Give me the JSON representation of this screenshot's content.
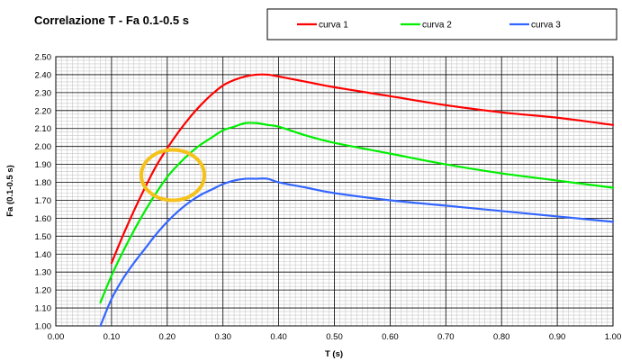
{
  "chart_data": {
    "type": "line",
    "title": "Correlazione T - Fa 0.1-0.5 s",
    "xlabel": "T (s)",
    "ylabel": "Fa (0.1-0.5 s)",
    "xlim": [
      0,
      1
    ],
    "ylim": [
      1.0,
      2.5
    ],
    "x_ticks": [
      "0.00",
      "0.10",
      "0.20",
      "0.30",
      "0.40",
      "0.50",
      "0.60",
      "0.70",
      "0.80",
      "0.90",
      "1.00"
    ],
    "y_ticks": [
      "1.00",
      "1.10",
      "1.20",
      "1.30",
      "1.40",
      "1.50",
      "1.60",
      "1.70",
      "1.80",
      "1.90",
      "2.00",
      "2.10",
      "2.20",
      "2.30",
      "2.40",
      "2.50"
    ],
    "grid": true,
    "legend_position": "top-right",
    "series": [
      {
        "name": "curva 1",
        "color": "#ff0000",
        "x": [
          0.1,
          0.12,
          0.14,
          0.16,
          0.18,
          0.2,
          0.22,
          0.24,
          0.26,
          0.28,
          0.3,
          0.32,
          0.34,
          0.36,
          0.38,
          0.4,
          0.45,
          0.5,
          0.6,
          0.7,
          0.8,
          0.9,
          1.0
        ],
        "y": [
          1.35,
          1.5,
          1.64,
          1.77,
          1.89,
          1.99,
          2.08,
          2.16,
          2.23,
          2.29,
          2.34,
          2.37,
          2.39,
          2.4,
          2.4,
          2.39,
          2.36,
          2.33,
          2.28,
          2.23,
          2.19,
          2.16,
          2.12
        ]
      },
      {
        "name": "curva 2",
        "color": "#00ee00",
        "x": [
          0.08,
          0.1,
          0.12,
          0.14,
          0.16,
          0.18,
          0.2,
          0.22,
          0.24,
          0.26,
          0.28,
          0.3,
          0.32,
          0.34,
          0.36,
          0.38,
          0.4,
          0.45,
          0.5,
          0.6,
          0.7,
          0.8,
          0.9,
          1.0
        ],
        "y": [
          1.13,
          1.28,
          1.41,
          1.53,
          1.64,
          1.74,
          1.83,
          1.9,
          1.96,
          2.01,
          2.05,
          2.09,
          2.11,
          2.13,
          2.13,
          2.12,
          2.11,
          2.06,
          2.02,
          1.96,
          1.9,
          1.85,
          1.81,
          1.77
        ]
      },
      {
        "name": "curva 3",
        "color": "#3366ff",
        "x": [
          0.08,
          0.1,
          0.12,
          0.14,
          0.16,
          0.18,
          0.2,
          0.22,
          0.24,
          0.26,
          0.28,
          0.3,
          0.32,
          0.34,
          0.36,
          0.38,
          0.4,
          0.45,
          0.5,
          0.6,
          0.7,
          0.8,
          0.9,
          1.0
        ],
        "y": [
          1.0,
          1.15,
          1.26,
          1.35,
          1.43,
          1.51,
          1.58,
          1.64,
          1.69,
          1.73,
          1.76,
          1.79,
          1.81,
          1.82,
          1.82,
          1.82,
          1.8,
          1.77,
          1.74,
          1.7,
          1.67,
          1.64,
          1.61,
          1.58
        ]
      }
    ],
    "annotations": [
      {
        "type": "circle",
        "color": "#f5c21b",
        "x": 0.21,
        "y": 1.84
      }
    ]
  }
}
